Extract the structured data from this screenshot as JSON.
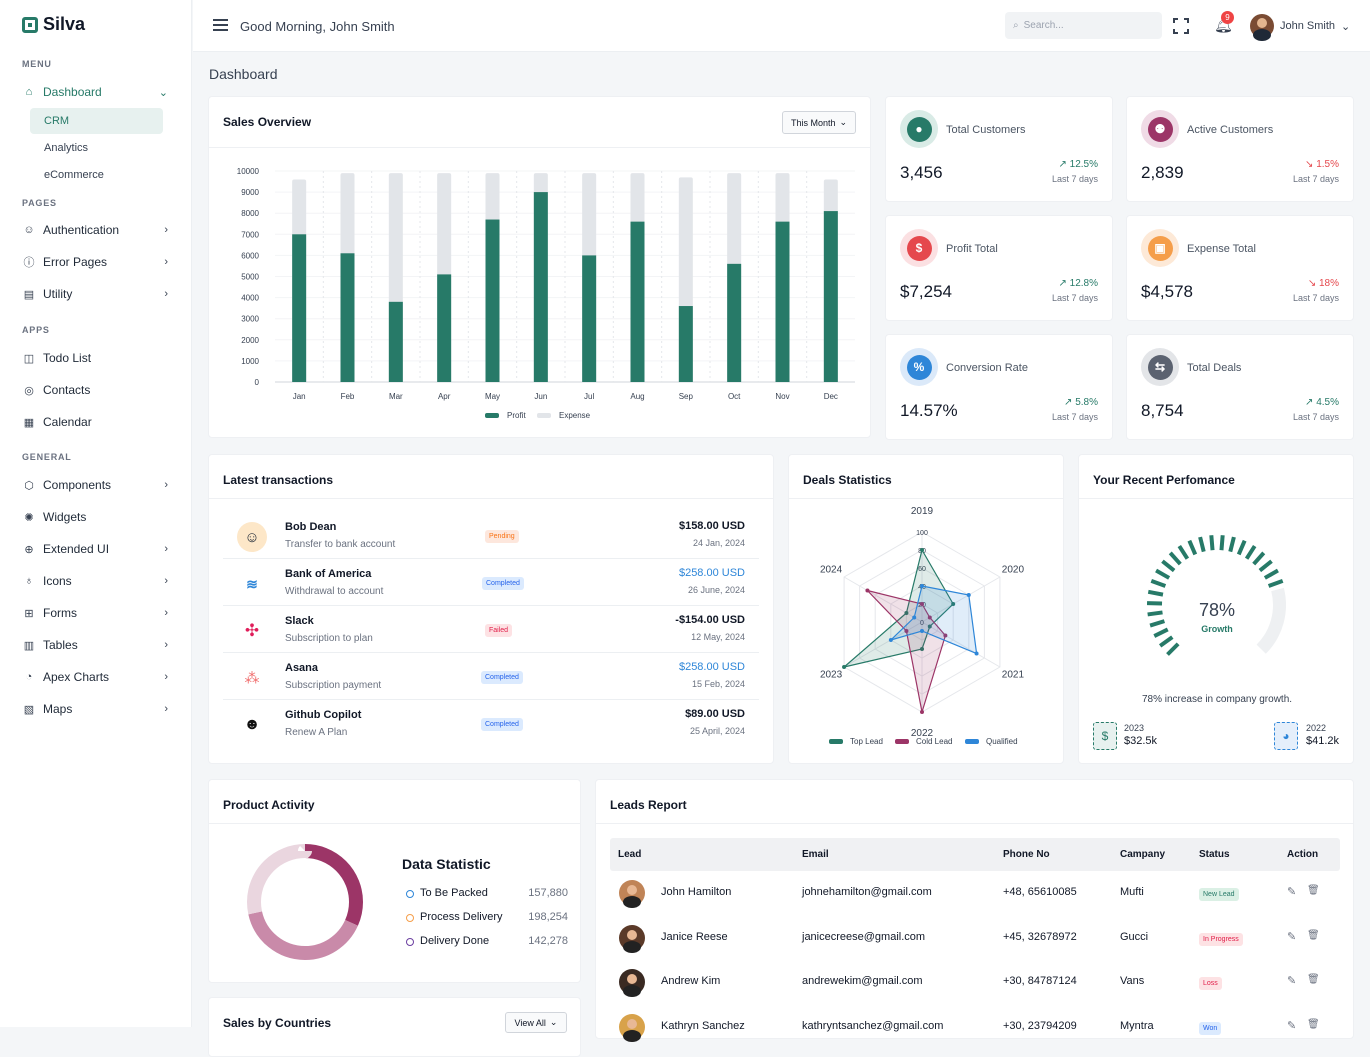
{
  "brand": {
    "name": "Silva"
  },
  "sidebar": {
    "sections": {
      "menu": "MENU",
      "pages": "PAGES",
      "apps": "APPS",
      "general": "GENERAL"
    },
    "dashboard": "Dashboard",
    "subitems": [
      "CRM",
      "Analytics",
      "eCommerce"
    ],
    "pages": [
      "Authentication",
      "Error Pages",
      "Utility"
    ],
    "apps": [
      "Todo List",
      "Contacts",
      "Calendar"
    ],
    "general": [
      "Components",
      "Widgets",
      "Extended UI",
      "Icons",
      "Forms",
      "Tables",
      "Apex Charts",
      "Maps"
    ]
  },
  "header": {
    "greeting": "Good Morning, John Smith",
    "search_placeholder": "Search...",
    "notifications": "9",
    "user": "John Smith"
  },
  "page_title": "Dashboard",
  "sales_overview": {
    "title": "Sales Overview",
    "filter": "This Month",
    "chart_data": {
      "type": "bar",
      "categories": [
        "Jan",
        "Feb",
        "Mar",
        "Apr",
        "May",
        "Jun",
        "Jul",
        "Aug",
        "Sep",
        "Oct",
        "Nov",
        "Dec"
      ],
      "series": [
        {
          "name": "Profit",
          "values": [
            7000,
            6100,
            3800,
            5100,
            7700,
            9000,
            6000,
            7600,
            3600,
            5600,
            7600,
            8100
          ],
          "color": "#277a68"
        },
        {
          "name": "Expense",
          "values": [
            9600,
            9900,
            9900,
            9900,
            9900,
            9900,
            9900,
            9900,
            9700,
            9900,
            9900,
            9600
          ],
          "color": "#e2e5e9"
        }
      ],
      "ylim": [
        0,
        10000
      ],
      "yticks": [
        "10000",
        "9000",
        "8000",
        "7000",
        "6000",
        "5000",
        "4000",
        "3000",
        "2000",
        "1000",
        "0"
      ],
      "stacked_overlay": true
    }
  },
  "stats": [
    {
      "label": "Total Customers",
      "value": "3,456",
      "pct": "12.5%",
      "trend": "up",
      "period": "Last 7 days",
      "icon": "user-icon",
      "color": "#277a68",
      "bg": "#d9ebe6"
    },
    {
      "label": "Active Customers",
      "value": "2,839",
      "pct": "1.5%",
      "trend": "down",
      "period": "Last 7 days",
      "icon": "users-icon",
      "color": "#9c3567",
      "bg": "#f0dbe6"
    },
    {
      "label": "Profit Total",
      "value": "$7,254",
      "pct": "12.8%",
      "trend": "up",
      "period": "Last 7 days",
      "icon": "dollar-icon",
      "color": "#e5484d",
      "bg": "#fbe0e2"
    },
    {
      "label": "Expense Total",
      "value": "$4,578",
      "pct": "18%",
      "trend": "down",
      "period": "Last 7 days",
      "icon": "wallet-icon",
      "color": "#f59e4a",
      "bg": "#fde9d7"
    },
    {
      "label": "Conversion Rate",
      "value": "14.57%",
      "pct": "5.8%",
      "trend": "up",
      "period": "Last 7 days",
      "icon": "percent-icon",
      "color": "#2e86d8",
      "bg": "#dbe9f9"
    },
    {
      "label": "Total Deals",
      "value": "8,754",
      "pct": "4.5%",
      "trend": "up",
      "period": "Last 7 days",
      "icon": "exchange-icon",
      "color": "#5b6270",
      "bg": "#e3e5e8"
    }
  ],
  "transactions": {
    "title": "Latest transactions",
    "rows": [
      {
        "name": "Bob Dean",
        "sub": "Transfer to bank account",
        "status": "Pending",
        "amount": "$158.00 USD",
        "date": "24 Jan, 2024"
      },
      {
        "name": "Bank of America",
        "sub": "Withdrawal to account",
        "status": "Completed",
        "amount": "$258.00 USD",
        "date": "26 June, 2024"
      },
      {
        "name": "Slack",
        "sub": "Subscription to plan",
        "status": "Failed",
        "amount": "-$154.00 USD",
        "date": "12 May, 2024"
      },
      {
        "name": "Asana",
        "sub": "Subscription payment",
        "status": "Completed",
        "amount": "$258.00 USD",
        "date": "15 Feb, 2024"
      },
      {
        "name": "Github Copilot",
        "sub": "Renew A Plan",
        "status": "Completed",
        "amount": "$89.00 USD",
        "date": "25 April, 2024"
      }
    ]
  },
  "deals": {
    "title": "Deals Statistics",
    "chart_data": {
      "type": "radar",
      "categories": [
        "2019",
        "2020",
        "2021",
        "2022",
        "2023",
        "2024"
      ],
      "ticks": [
        "100",
        "80",
        "60",
        "40",
        "20",
        "0"
      ],
      "series": [
        {
          "name": "Top Lead",
          "values": [
            80,
            40,
            10,
            30,
            100,
            20
          ],
          "color": "#277a68"
        },
        {
          "name": "Cold Lead",
          "values": [
            20,
            10,
            30,
            100,
            20,
            70
          ],
          "color": "#9c3567"
        },
        {
          "name": "Qualified",
          "values": [
            40,
            60,
            70,
            10,
            40,
            10
          ],
          "color": "#2e86d8"
        }
      ]
    }
  },
  "performance": {
    "title": "Your Recent Perfomance",
    "percent": "78%",
    "label": "Growth",
    "value": 0.78,
    "caption": "78% increase in company growth.",
    "y1": {
      "year": "2023",
      "amount": "$32.5k"
    },
    "y2": {
      "year": "2022",
      "amount": "$41.2k"
    }
  },
  "product_activity": {
    "title": "Product Activity",
    "heading": "Data Statistic",
    "chart_data": {
      "type": "pie",
      "items": [
        {
          "label": "To Be Packed",
          "value": "157,880",
          "color": "#9c3567"
        },
        {
          "label": "Process Delivery",
          "value": "198,254",
          "color": "#c98aa9"
        },
        {
          "label": "Delivery Done",
          "value": "142,278",
          "color": "#ead6df"
        }
      ]
    },
    "legend_colors": [
      "#2e86d8",
      "#f59e4a",
      "#6b3fa0"
    ]
  },
  "countries": {
    "title": "Sales by Countries",
    "button": "View All"
  },
  "leads": {
    "title": "Leads Report",
    "columns": [
      "Lead",
      "Email",
      "Phone No",
      "Campany",
      "Status",
      "Action"
    ],
    "rows": [
      {
        "name": "John Hamilton",
        "email": "johnehamilton@gmail.com",
        "phone": "+48, 65610085",
        "company": "Mufti",
        "status": "New Lead"
      },
      {
        "name": "Janice Reese",
        "email": "janicecreese@gmail.com",
        "phone": "+45, 32678972",
        "company": "Gucci",
        "status": "In Progress"
      },
      {
        "name": "Andrew Kim",
        "email": "andrewekim@gmail.com",
        "phone": "+30, 84787124",
        "company": "Vans",
        "status": "Loss"
      },
      {
        "name": "Kathryn Sanchez",
        "email": "kathryntsanchez@gmail.com",
        "phone": "+30, 23794209",
        "company": "Myntra",
        "status": "Won"
      }
    ]
  }
}
